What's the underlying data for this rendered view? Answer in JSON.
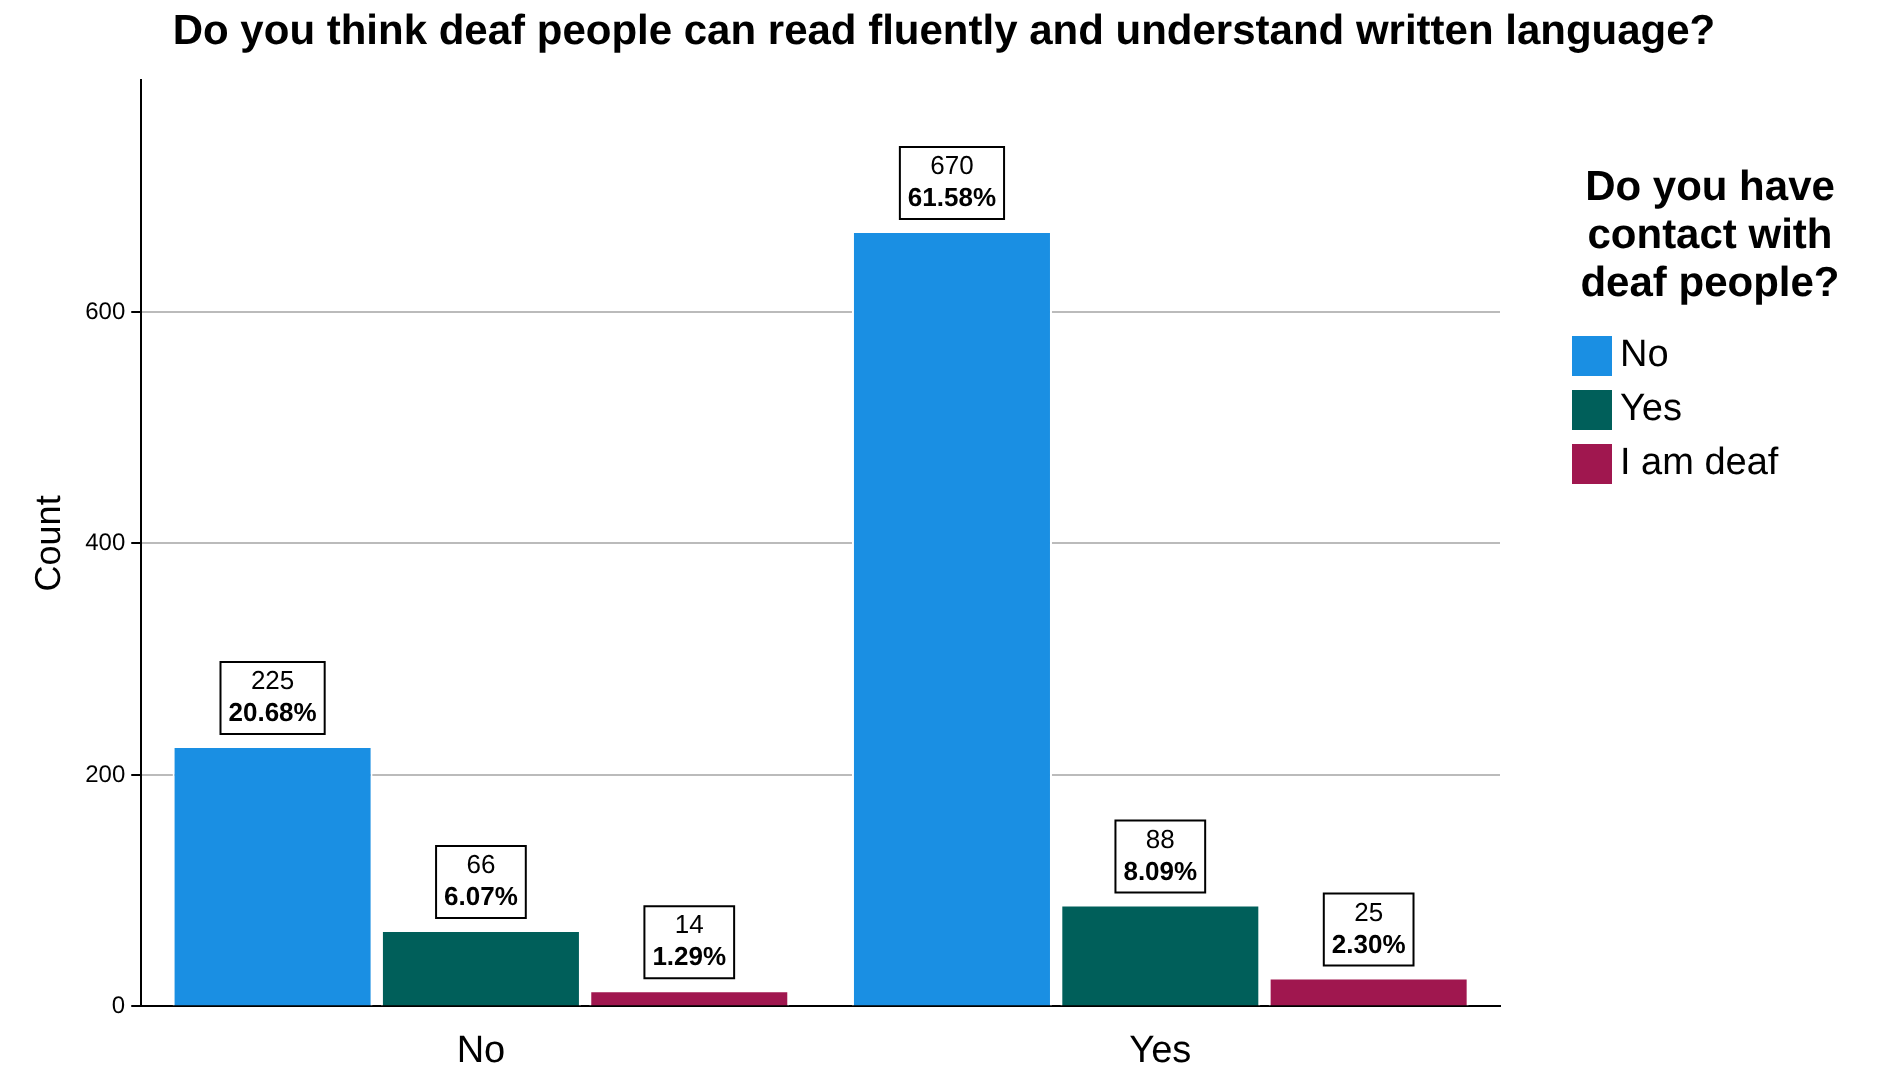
{
  "chart_data": {
    "type": "bar",
    "title": "Do you think deaf people can read fluently and understand written language?",
    "ylabel": "Count",
    "legend_title": "Do you have contact with deaf people?",
    "categories": [
      "No",
      "Yes"
    ],
    "series": [
      {
        "name": "No",
        "color": "#1a8fe3",
        "values": [
          225,
          670
        ],
        "value_labels": [
          "225\n20.68%",
          "670\n61.58%"
        ]
      },
      {
        "name": "Yes",
        "color": "#005f5a",
        "values": [
          66,
          88
        ],
        "value_labels": [
          "66\n6.07%",
          "88\n8.09%"
        ]
      },
      {
        "name": "I am deaf",
        "color": "#a0174f",
        "values": [
          14,
          25
        ],
        "value_labels": [
          "14\n1.29%",
          "25\n2.30%"
        ]
      }
    ],
    "ylim": [
      0,
      800
    ],
    "yticks": [
      0,
      200,
      400,
      600
    ],
    "grid": "y",
    "legend": "right"
  }
}
